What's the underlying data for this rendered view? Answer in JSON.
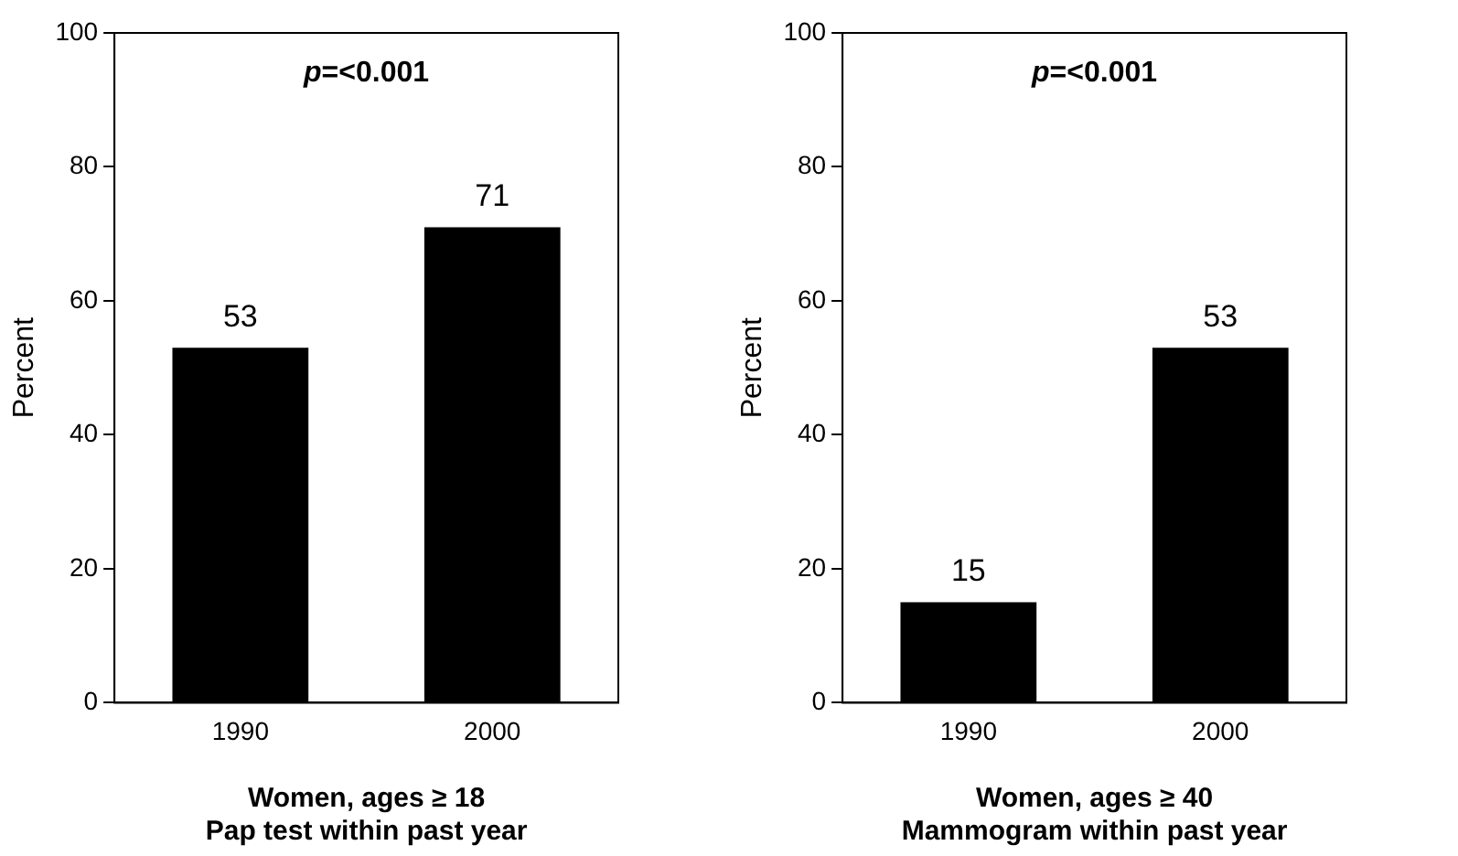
{
  "chart_data": [
    {
      "type": "bar",
      "categories": [
        "1990",
        "2000"
      ],
      "values": [
        53,
        71
      ],
      "color": "#000000",
      "ylim": [
        0,
        100
      ],
      "yticks": [
        0,
        20,
        40,
        60,
        80,
        100
      ],
      "ylabel": "Percent",
      "xlabel": "Women, ages ≥ 18\nPap test within past year",
      "annotations": [
        "p=<0.001"
      ],
      "data_labels": true,
      "grid": false,
      "legend": false
    },
    {
      "type": "bar",
      "categories": [
        "1990",
        "2000"
      ],
      "values": [
        15,
        53
      ],
      "color": "#000000",
      "ylim": [
        0,
        100
      ],
      "yticks": [
        0,
        20,
        40,
        60,
        80,
        100
      ],
      "ylabel": "Percent",
      "xlabel": "Women, ages ≥ 40\nMammogram within past year",
      "annotations": [
        "p=<0.001"
      ],
      "data_labels": true,
      "grid": false,
      "legend": false
    }
  ]
}
